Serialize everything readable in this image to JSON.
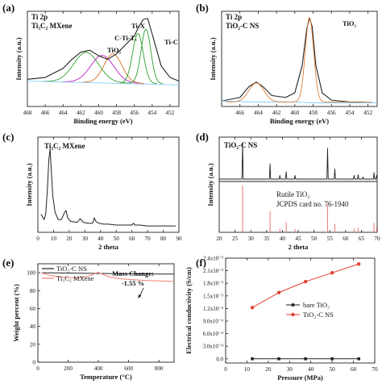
{
  "chart_data": [
    {
      "panel": "(a)",
      "type": "line",
      "title_lines": [
        "Ti 2p",
        "Ti₃C₂ MXene"
      ],
      "xlabel": "Binding energy (eV)",
      "ylabel": "Intensity (a.u.)",
      "xlim": [
        468,
        451
      ],
      "x_ticks": [
        468,
        466,
        464,
        462,
        460,
        458,
        456,
        454,
        452
      ],
      "peak_labels": [
        {
          "text": "Ti-X",
          "color": "#2ca02c"
        },
        {
          "text": "C-Ti-Tₓ",
          "color": "#c020c0"
        },
        {
          "text": "TiO₂",
          "color": "#e07020"
        },
        {
          "text": "Ti-C",
          "color": "#2ca02c"
        }
      ],
      "series": [
        {
          "color": "#222222",
          "x": [
            468,
            466,
            464,
            463,
            462,
            461,
            460,
            459,
            458,
            457,
            456,
            455.5,
            455,
            454.5,
            454,
            453,
            452,
            451
          ],
          "y": [
            0.3,
            0.32,
            0.42,
            0.52,
            0.6,
            0.62,
            0.56,
            0.52,
            0.58,
            0.68,
            0.78,
            0.88,
            0.96,
            0.97,
            0.8,
            0.45,
            0.32,
            0.28
          ]
        },
        {
          "color": "#87cefa",
          "x": [
            468,
            464,
            460,
            456,
            452,
            451
          ],
          "y": [
            0.28,
            0.27,
            0.26,
            0.25,
            0.24,
            0.24
          ]
        }
      ],
      "components": [
        {
          "color": "#2ca02c",
          "center": 461.4,
          "width": 1.4,
          "height": 0.33
        },
        {
          "color": "#c020c0",
          "center": 459.6,
          "width": 1.3,
          "height": 0.3
        },
        {
          "color": "#e07020",
          "center": 458.4,
          "width": 1.0,
          "height": 0.32
        },
        {
          "color": "#2ca02c",
          "center": 455.6,
          "width": 0.6,
          "height": 0.55
        },
        {
          "color": "#2ca02c",
          "center": 454.7,
          "width": 0.55,
          "height": 0.6
        }
      ]
    },
    {
      "panel": "(b)",
      "type": "line",
      "title_lines": [
        "Ti 2p",
        "TiO₂-C NS"
      ],
      "xlabel": "Binding energy (eV)",
      "ylabel": "Intensity (a.u.)",
      "xlim": [
        468,
        451
      ],
      "x_ticks": [
        466,
        464,
        462,
        460,
        458,
        456,
        454,
        452
      ],
      "peak_labels": [
        {
          "text": "TiO₂",
          "color": "#e07020"
        }
      ],
      "series": [
        {
          "color": "#222222",
          "x": [
            468,
            466,
            465,
            464.2,
            463.5,
            462.5,
            461,
            460,
            459.2,
            458.7,
            458.4,
            458.1,
            457.7,
            457,
            456,
            454,
            452,
            451
          ],
          "y": [
            0.06,
            0.1,
            0.22,
            0.27,
            0.22,
            0.12,
            0.1,
            0.15,
            0.45,
            0.85,
            0.98,
            0.88,
            0.45,
            0.15,
            0.07,
            0.05,
            0.04,
            0.04
          ]
        },
        {
          "color": "#87cefa",
          "x": [
            468,
            464,
            460,
            458,
            456,
            452,
            451
          ],
          "y": [
            0.06,
            0.05,
            0.05,
            0.04,
            0.04,
            0.04,
            0.04
          ]
        }
      ]
    },
    {
      "panel": "(c)",
      "type": "line",
      "title": "Ti₃C₂ MXene",
      "xlabel": "2 theta",
      "ylabel": "Intensity (a.u.)",
      "xlim": [
        0,
        90
      ],
      "x_ticks": [
        0,
        10,
        20,
        30,
        40,
        50,
        60,
        70,
        80,
        90
      ],
      "series": [
        {
          "color": "#222222",
          "x": [
            2,
            4,
            5,
            6,
            7,
            7.8,
            8.5,
            9.5,
            11,
            13,
            15,
            17,
            18,
            19,
            21,
            25,
            27,
            29,
            32,
            35,
            36,
            37,
            39,
            42,
            45,
            50,
            55,
            60,
            61,
            62,
            65,
            70,
            75,
            80,
            85,
            88
          ],
          "y": [
            0.2,
            0.14,
            0.2,
            0.45,
            0.8,
            0.92,
            0.7,
            0.4,
            0.22,
            0.14,
            0.14,
            0.22,
            0.24,
            0.16,
            0.12,
            0.11,
            0.15,
            0.11,
            0.1,
            0.1,
            0.16,
            0.12,
            0.1,
            0.09,
            0.09,
            0.08,
            0.08,
            0.08,
            0.1,
            0.08,
            0.08,
            0.07,
            0.07,
            0.07,
            0.07,
            0.07
          ]
        }
      ]
    },
    {
      "panel": "(d)",
      "type": "bar",
      "title": "TiO₂-C NS",
      "reference_label": [
        "Rutile TiO₂",
        "JCPDS card no. 76-1940"
      ],
      "xlabel": "2 theta",
      "ylabel": "Intensity (a.u.)",
      "xlim": [
        20,
        70
      ],
      "x_ticks": [
        20,
        25,
        30,
        35,
        40,
        45,
        50,
        55,
        60,
        65,
        70
      ],
      "sample_peaks": {
        "x": [
          27.4,
          36.1,
          39.2,
          41.2,
          44.0,
          54.3,
          56.6,
          62.7,
          64.0,
          65.5,
          69.0,
          69.8
        ],
        "y": [
          1.0,
          0.42,
          0.1,
          0.2,
          0.1,
          0.85,
          0.28,
          0.1,
          0.12,
          0.06,
          0.18,
          0.1
        ]
      },
      "reference_peaks": {
        "x": [
          27.4,
          36.1,
          39.2,
          41.2,
          44.0,
          54.3,
          56.6,
          62.7,
          64.0,
          65.5,
          69.0,
          69.8
        ],
        "y": [
          1.0,
          0.45,
          0.08,
          0.22,
          0.07,
          0.6,
          0.18,
          0.08,
          0.1,
          0.03,
          0.2,
          0.09
        ]
      }
    },
    {
      "panel": "(e)",
      "type": "line",
      "xlabel": "Temperature (°C)",
      "ylabel": "Weight percent (%)",
      "xlim": [
        0,
        900
      ],
      "ylim": [
        0,
        110
      ],
      "x_ticks": [
        0,
        200,
        400,
        600,
        800
      ],
      "y_ticks": [
        0,
        20,
        40,
        60,
        80,
        100
      ],
      "annotation": [
        "Mass Change:",
        "-1.55 %"
      ],
      "legend": [
        {
          "label": "TiO₂-C NS",
          "color": "#222222"
        },
        {
          "label": "Ti₃C₂ MXene",
          "color": "#f08070"
        }
      ],
      "series": [
        {
          "color": "#222222",
          "x": [
            25,
            100,
            200,
            300,
            400,
            500,
            600,
            700,
            800,
            900
          ],
          "y": [
            100,
            99.8,
            99.6,
            99.4,
            99.2,
            99.0,
            98.8,
            98.7,
            98.5,
            98.45
          ]
        },
        {
          "color": "#f08070",
          "x": [
            25,
            60,
            100,
            150,
            200,
            250,
            300,
            350,
            380,
            400,
            420,
            450,
            500,
            550,
            600,
            700,
            800,
            900
          ],
          "y": [
            100,
            98,
            96.5,
            95.3,
            94.5,
            94.2,
            94.8,
            97,
            99.5,
            100.2,
            99,
            96.5,
            94.3,
            93.2,
            92.5,
            91.5,
            90.8,
            90.3
          ]
        }
      ]
    },
    {
      "panel": "(f)",
      "type": "line",
      "xlabel": "Pressure (MPa)",
      "ylabel": "Electrical conductivity (S/cm)",
      "xlim": [
        0,
        70
      ],
      "ylim": [
        -0.0001,
        0.0024
      ],
      "x_ticks": [
        0,
        10,
        20,
        30,
        40,
        50,
        60,
        70
      ],
      "y_ticks": [
        {
          "value": 0.0,
          "label": "0.0"
        },
        {
          "value": 0.0003,
          "label": "3.0x10⁻⁴"
        },
        {
          "value": 0.0006,
          "label": "6.0x10⁻⁴"
        },
        {
          "value": 0.0009,
          "label": "9.0x10⁻⁴"
        },
        {
          "value": 0.0012,
          "label": "1.2x10⁻³"
        },
        {
          "value": 0.0015,
          "label": "1.5x10⁻³"
        },
        {
          "value": 0.0018,
          "label": "1.8x10⁻³"
        },
        {
          "value": 0.0021,
          "label": "2.1x10⁻³"
        },
        {
          "value": 0.0024,
          "label": "2.4x10⁻³"
        }
      ],
      "legend": [
        {
          "label": "bare TiO₂",
          "color": "#222222"
        },
        {
          "label": "TiO₂-C NS",
          "color": "#e04030"
        }
      ],
      "series": [
        {
          "color": "#222222",
          "x": [
            12.5,
            25,
            37.5,
            50,
            62.5
          ],
          "y": [
            0,
            0,
            0,
            0,
            0
          ]
        },
        {
          "color": "#e04030",
          "x": [
            12.5,
            25,
            37.5,
            50,
            62.5
          ],
          "y": [
            0.00122,
            0.00158,
            0.00184,
            0.00205,
            0.00226
          ]
        }
      ]
    }
  ],
  "panel_labels": [
    "(a)",
    "(b)",
    "(c)",
    "(d)",
    "(e)",
    "(f)"
  ]
}
